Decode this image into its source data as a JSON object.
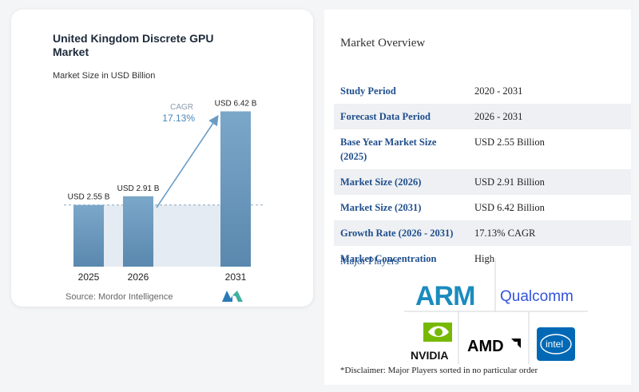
{
  "chart": {
    "title": "United Kingdom Discrete GPU Market",
    "subtitle": "Market Size in USD Billion",
    "source": "Source: Mordor Intelligence",
    "cagr_label": "CAGR",
    "cagr_value": "17.13%"
  },
  "chart_data": {
    "type": "bar",
    "title": "United Kingdom Discrete GPU Market",
    "subtitle": "Market Size in USD Billion",
    "categories": [
      "2025",
      "2026",
      "2031"
    ],
    "values": [
      2.55,
      2.91,
      6.42
    ],
    "data_labels": [
      "USD 2.55 B",
      "USD 2.91 B",
      "USD 6.42 B"
    ],
    "annotation": "CAGR 17.13%",
    "colors": {
      "bar_top": "#7ba7c9",
      "bar_bottom": "#5c8ab0",
      "area": "#e4ebf3",
      "arrow": "#6a9cc4",
      "cagr_text": "#4a86b8"
    }
  },
  "overview": {
    "title": "Market Overview",
    "rows": [
      {
        "label": "Study Period",
        "value": "2020 - 2031"
      },
      {
        "label": "Forecast Data Period",
        "value": "2026 - 2031"
      },
      {
        "label": "Base Year Market Size (2025)",
        "value": "USD 2.55 Billion"
      },
      {
        "label": "Market Size (2026)",
        "value": "USD 2.91 Billion"
      },
      {
        "label": "Market Size (2031)",
        "value": "USD 6.42 Billion"
      },
      {
        "label": "Growth Rate (2026 - 2031)",
        "value": "17.13% CAGR"
      },
      {
        "label": "Market Concentration",
        "value": "High"
      }
    ]
  },
  "players": {
    "title": "Major Players",
    "names": [
      "ARM",
      "Qualcomm",
      "NVIDIA",
      "AMD",
      "intel"
    ],
    "disclaimer": "*Disclaimer: Major Players sorted in no particular order"
  }
}
